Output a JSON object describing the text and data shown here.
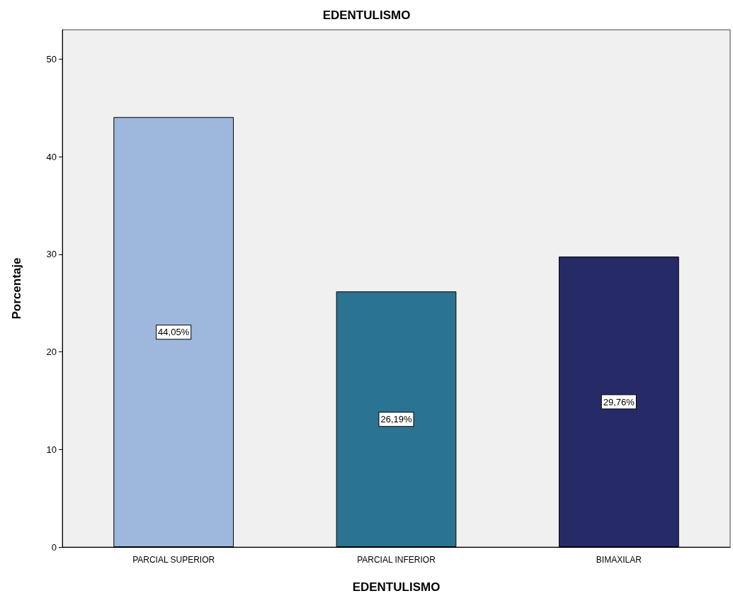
{
  "chart_data": {
    "type": "bar",
    "title": "EDENTULISMO",
    "xlabel": "EDENTULISMO",
    "ylabel": "Porcentaje",
    "categories": [
      "PARCIAL SUPERIOR",
      "PARCIAL INFERIOR",
      "BIMAXILAR"
    ],
    "values": [
      44.05,
      26.19,
      29.76
    ],
    "colors": [
      "#9db8dc",
      "#2b7392",
      "#262a66"
    ],
    "value_labels": [
      "44,05%",
      "26,19%",
      "29,76%"
    ],
    "ylim": [
      0,
      53
    ],
    "yticks": [
      0,
      10,
      20,
      30,
      40,
      50
    ],
    "grid": false
  }
}
